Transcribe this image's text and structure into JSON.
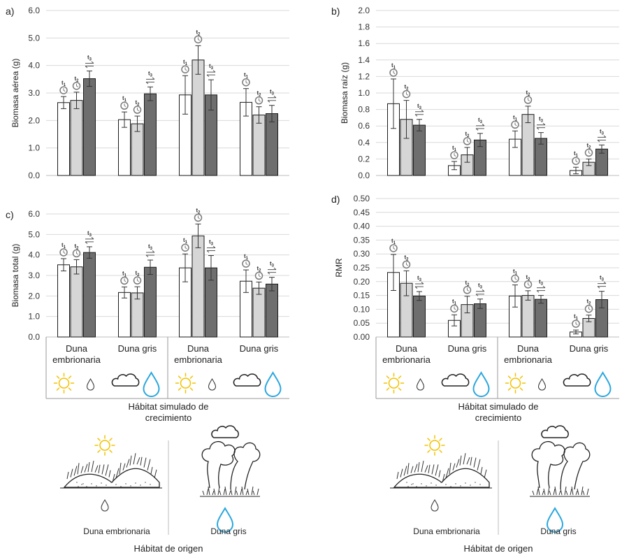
{
  "colors": {
    "t1": "#ffffff",
    "t2": "#d6d6d6",
    "t3": "#6e6e6e",
    "grid": "#d9d9d9",
    "sun": "#f2c200",
    "drop_blue": "#2aa7de"
  },
  "icons": {
    "t1": "clock-icon",
    "t2": "clock-icon",
    "t3": "swap-arrows-icon"
  },
  "time_labels": [
    "t1",
    "t2",
    "t3"
  ],
  "group_labels": [
    "Duna embrionaria",
    "Duna gris",
    "Duna embrionaria",
    "Duna gris"
  ],
  "x_axis_title": "Hábitat simulado de crecimiento",
  "origin": {
    "title": "Hábitat de origen",
    "labels": [
      "Duna embrionaria",
      "Duna gris"
    ]
  },
  "chart_data": [
    {
      "id": "a",
      "panel_label": "a)",
      "type": "bar",
      "ylabel": "Biomasa aérea (g)",
      "ylim": [
        0,
        6
      ],
      "yticks": [
        "0.0",
        "1.0",
        "2.0",
        "3.0",
        "4.0",
        "5.0",
        "6.0"
      ],
      "series": [
        {
          "name": "t1",
          "values": [
            2.65,
            2.03,
            2.93,
            2.66
          ],
          "errors": [
            0.22,
            0.28,
            0.7,
            0.5
          ]
        },
        {
          "name": "t2",
          "values": [
            2.73,
            1.88,
            4.2,
            2.2
          ],
          "errors": [
            0.3,
            0.28,
            0.52,
            0.3
          ]
        },
        {
          "name": "t3",
          "values": [
            3.52,
            2.97,
            2.93,
            2.25
          ],
          "errors": [
            0.28,
            0.25,
            0.55,
            0.3
          ]
        }
      ]
    },
    {
      "id": "b",
      "panel_label": "b)",
      "type": "bar",
      "ylabel": "Biomasa raíz (g)",
      "ylim": [
        0,
        2
      ],
      "yticks": [
        "0.0",
        "0.2",
        "0.4",
        "0.6",
        "0.8",
        "1.0",
        "1.2",
        "1.4",
        "1.6",
        "1.8",
        "2.0"
      ],
      "series": [
        {
          "name": "t1",
          "values": [
            0.87,
            0.12,
            0.44,
            0.06
          ],
          "errors": [
            0.3,
            0.05,
            0.1,
            0.04
          ]
        },
        {
          "name": "t2",
          "values": [
            0.68,
            0.25,
            0.74,
            0.16
          ],
          "errors": [
            0.23,
            0.09,
            0.1,
            0.04
          ]
        },
        {
          "name": "t3",
          "values": [
            0.61,
            0.43,
            0.45,
            0.32
          ],
          "errors": [
            0.07,
            0.08,
            0.07,
            0.05
          ]
        }
      ]
    },
    {
      "id": "c",
      "panel_label": "c)",
      "type": "bar",
      "ylabel": "Biomasa total (g)",
      "ylim": [
        0,
        6
      ],
      "yticks": [
        "0.0",
        "1.0",
        "2.0",
        "3.0",
        "4.0",
        "5.0",
        "6.0"
      ],
      "series": [
        {
          "name": "t1",
          "values": [
            3.52,
            2.17,
            3.37,
            2.72
          ],
          "errors": [
            0.3,
            0.27,
            0.68,
            0.55
          ]
        },
        {
          "name": "t2",
          "values": [
            3.42,
            2.15,
            4.93,
            2.38
          ],
          "errors": [
            0.35,
            0.3,
            0.58,
            0.3
          ]
        },
        {
          "name": "t3",
          "values": [
            4.12,
            3.4,
            3.37,
            2.58
          ],
          "errors": [
            0.28,
            0.35,
            0.6,
            0.33
          ]
        }
      ]
    },
    {
      "id": "d",
      "panel_label": "d)",
      "type": "bar",
      "ylabel": "RMR",
      "ylim": [
        0,
        0.5
      ],
      "yticks": [
        "0.00",
        "0.05",
        "0.10",
        "0.15",
        "0.20",
        "0.25",
        "0.30",
        "0.35",
        "0.40",
        "0.45",
        "0.50"
      ],
      "series": [
        {
          "name": "t1",
          "values": [
            0.233,
            0.06,
            0.148,
            0.018
          ],
          "errors": [
            0.065,
            0.02,
            0.04,
            0.007
          ]
        },
        {
          "name": "t2",
          "values": [
            0.194,
            0.117,
            0.15,
            0.067
          ],
          "errors": [
            0.045,
            0.03,
            0.017,
            0.012
          ]
        },
        {
          "name": "t3",
          "values": [
            0.148,
            0.12,
            0.136,
            0.135
          ],
          "errors": [
            0.016,
            0.017,
            0.014,
            0.03
          ]
        }
      ]
    }
  ]
}
